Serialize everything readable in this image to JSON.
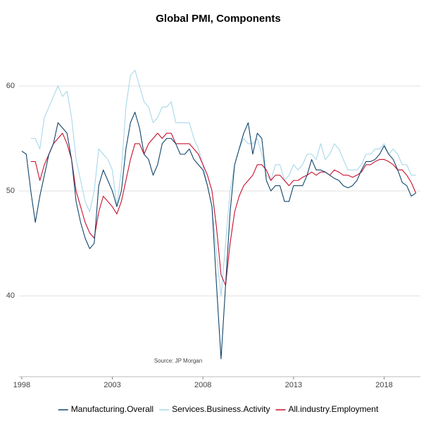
{
  "chart_data": {
    "type": "line",
    "title": "Global PMI, Components",
    "annotation": "Source: JP Morgan",
    "x": [
      1998,
      1998.25,
      1998.5,
      1998.75,
      1999,
      1999.25,
      1999.5,
      1999.75,
      2000,
      2000.25,
      2000.5,
      2000.75,
      2001,
      2001.25,
      2001.5,
      2001.75,
      2002,
      2002.25,
      2002.5,
      2002.75,
      2003,
      2003.25,
      2003.5,
      2003.75,
      2004,
      2004.25,
      2004.5,
      2004.75,
      2005,
      2005.25,
      2005.5,
      2005.75,
      2006,
      2006.25,
      2006.5,
      2006.75,
      2007,
      2007.25,
      2007.5,
      2007.75,
      2008,
      2008.25,
      2008.5,
      2008.75,
      2009,
      2009.25,
      2009.5,
      2009.75,
      2010,
      2010.25,
      2010.5,
      2010.75,
      2011,
      2011.25,
      2011.5,
      2011.75,
      2012,
      2012.25,
      2012.5,
      2012.75,
      2013,
      2013.25,
      2013.5,
      2013.75,
      2014,
      2014.25,
      2014.5,
      2014.75,
      2015,
      2015.25,
      2015.5,
      2015.75,
      2016,
      2016.25,
      2016.5,
      2016.75,
      2017,
      2017.25,
      2017.5,
      2017.75,
      2018,
      2018.25,
      2018.5,
      2018.75,
      2019,
      2019.25,
      2019.5,
      2019.75
    ],
    "series": [
      {
        "name": "Manufacturing.Overall",
        "color": "#12456b",
        "values": [
          53.8,
          53.5,
          50,
          47,
          49.5,
          51.5,
          53.5,
          54.5,
          56.5,
          56,
          55.5,
          53,
          49,
          47,
          45.5,
          44.5,
          45,
          50.5,
          52,
          51,
          50,
          48.5,
          50,
          54,
          56.5,
          57.5,
          56,
          53.5,
          53,
          51.5,
          52.5,
          54.5,
          55,
          55,
          54.5,
          53.5,
          53.5,
          54,
          53,
          52.5,
          52,
          50.5,
          48.5,
          41,
          34,
          41,
          48,
          52.5,
          54,
          55.5,
          56.5,
          53.5,
          55.5,
          55,
          51,
          50,
          50.5,
          50.5,
          49,
          49,
          50.5,
          50.5,
          50.5,
          51.5,
          53,
          52,
          52,
          51.8,
          51.5,
          51.2,
          51,
          50.5,
          50.3,
          50.5,
          51,
          52,
          52.8,
          52.8,
          53,
          53.5,
          54.3,
          53.5,
          53,
          52,
          50.8,
          50.5,
          49.5,
          49.8
        ]
      },
      {
        "name": "Services.Business.Activity",
        "color": "#a8d8ea",
        "values": [
          null,
          null,
          55,
          55,
          54,
          57,
          58,
          59,
          60,
          59,
          59.5,
          57,
          53,
          51,
          49,
          48,
          50,
          54,
          53.5,
          53,
          52,
          48.5,
          52,
          58,
          61,
          61.5,
          60,
          58.5,
          58,
          56.5,
          57,
          58,
          58,
          58.5,
          56.5,
          56.5,
          56.5,
          56.5,
          55,
          54,
          52.5,
          50.5,
          48.5,
          44,
          40,
          45,
          50,
          52.5,
          54,
          55,
          54.5,
          54.5,
          55,
          53.5,
          51.5,
          51,
          52.5,
          52.5,
          51,
          51.5,
          52.5,
          52,
          52.5,
          53.5,
          53.5,
          53,
          54.5,
          53,
          53.5,
          54.5,
          54,
          53,
          52,
          52,
          52,
          52.5,
          53.5,
          53.5,
          54,
          54,
          54.5,
          53.5,
          54,
          53.5,
          52.5,
          52.5,
          51.5,
          51.5
        ]
      },
      {
        "name": "All.industry.Employment",
        "color": "#c8102e",
        "values": [
          null,
          null,
          52.8,
          52.8,
          51,
          52.5,
          53.5,
          54.5,
          55,
          55.5,
          54.5,
          53,
          50,
          48.5,
          47,
          46,
          45.5,
          48,
          49.5,
          49,
          48.5,
          47.8,
          49,
          51,
          53,
          54.5,
          54.5,
          53.5,
          54.5,
          55,
          55.5,
          55,
          55.5,
          55.5,
          54.5,
          54.5,
          54.5,
          54.5,
          54,
          53.5,
          52.5,
          51.5,
          50,
          46.5,
          42,
          41,
          45,
          48,
          49.5,
          50.5,
          51,
          51.5,
          52.5,
          52.5,
          52,
          51,
          51.5,
          51.5,
          51,
          50.5,
          51,
          51,
          51.3,
          51.5,
          51.8,
          51.5,
          51.8,
          51.8,
          51.5,
          52,
          51.8,
          51.5,
          51.5,
          51.3,
          51.5,
          51.8,
          52.5,
          52.5,
          52.8,
          53,
          53,
          52.8,
          52.5,
          52,
          52,
          51.5,
          50.8,
          49.8
        ]
      }
    ],
    "xlim": [
      1997.85,
      2020
    ],
    "xticks": [
      1998,
      2003,
      2008,
      2013,
      2018
    ],
    "ylim": [
      32.3,
      64.3
    ],
    "yticks": [
      40,
      50,
      60
    ],
    "grid": true,
    "legend": "bottom"
  }
}
